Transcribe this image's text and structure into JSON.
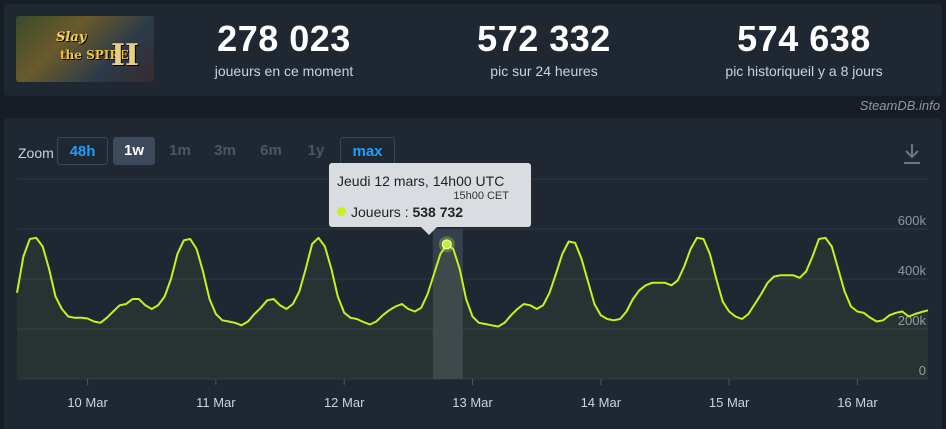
{
  "game": {
    "title_line1": "Slay",
    "title_line2": "the SPIRE",
    "title_numeral": "II"
  },
  "stats": [
    {
      "value": "278 023",
      "label": "joueurs en ce moment"
    },
    {
      "value": "572 332",
      "label": "pic sur 24 heures"
    },
    {
      "value": "574 638",
      "label": "pic historiqueil y a 8 jours"
    }
  ],
  "credit": "SteamDB.info",
  "zoom": {
    "label": "Zoom",
    "options": [
      "48h",
      "1w",
      "1m",
      "3m",
      "6m",
      "1y",
      "max"
    ],
    "selected": "1w"
  },
  "tooltip": {
    "date": "Jeudi 12 mars, 14h00 UTC",
    "cet": "15h00 CET",
    "series_label": "Joueurs : ",
    "value": "538 732"
  },
  "colors": {
    "line": "#c6f21c",
    "accent": "#1a9fff",
    "background": "#1f2733"
  },
  "chart_data": {
    "type": "line",
    "series": [
      {
        "values_note": "hourly player count"
      }
    ],
    "y_ticks": [
      "0",
      "200k",
      "400k",
      "600k"
    ],
    "ylim": [
      0,
      600000
    ],
    "x_ticks": [
      "10 Mar",
      "11 Mar",
      "12 Mar",
      "13 Mar",
      "14 Mar",
      "15 Mar",
      "16 Mar"
    ],
    "points": [
      [
        0.0,
        345000
      ],
      [
        0.6,
        490000
      ],
      [
        1.2,
        560000
      ],
      [
        1.8,
        565000
      ],
      [
        2.4,
        530000
      ],
      [
        3.0,
        440000
      ],
      [
        3.6,
        330000
      ],
      [
        4.2,
        280000
      ],
      [
        4.8,
        250000
      ],
      [
        5.4,
        245000
      ],
      [
        6.0,
        245000
      ],
      [
        6.6,
        242000
      ],
      [
        7.2,
        230000
      ],
      [
        7.8,
        225000
      ],
      [
        8.4,
        245000
      ],
      [
        9.0,
        270000
      ],
      [
        9.6,
        295000
      ],
      [
        10.2,
        300000
      ],
      [
        10.8,
        320000
      ],
      [
        11.4,
        320000
      ],
      [
        12.0,
        295000
      ],
      [
        12.6,
        280000
      ],
      [
        13.2,
        295000
      ],
      [
        13.8,
        330000
      ],
      [
        14.4,
        400000
      ],
      [
        15.0,
        500000
      ],
      [
        15.6,
        555000
      ],
      [
        16.2,
        560000
      ],
      [
        16.8,
        520000
      ],
      [
        17.4,
        430000
      ],
      [
        18.0,
        320000
      ],
      [
        18.6,
        260000
      ],
      [
        19.2,
        235000
      ],
      [
        19.8,
        230000
      ],
      [
        20.4,
        225000
      ],
      [
        21.0,
        215000
      ],
      [
        21.6,
        230000
      ],
      [
        22.2,
        260000
      ],
      [
        22.8,
        285000
      ],
      [
        23.4,
        315000
      ],
      [
        24.0,
        320000
      ],
      [
        24.6,
        295000
      ],
      [
        25.2,
        280000
      ],
      [
        25.8,
        300000
      ],
      [
        26.4,
        350000
      ],
      [
        27.0,
        440000
      ],
      [
        27.6,
        540000
      ],
      [
        28.2,
        565000
      ],
      [
        28.8,
        530000
      ],
      [
        29.4,
        440000
      ],
      [
        30.0,
        330000
      ],
      [
        30.6,
        265000
      ],
      [
        31.2,
        245000
      ],
      [
        31.8,
        240000
      ],
      [
        32.4,
        228000
      ],
      [
        33.0,
        218000
      ],
      [
        33.6,
        230000
      ],
      [
        34.2,
        255000
      ],
      [
        34.8,
        275000
      ],
      [
        35.4,
        290000
      ],
      [
        36.0,
        300000
      ],
      [
        36.6,
        280000
      ],
      [
        37.2,
        270000
      ],
      [
        37.8,
        285000
      ],
      [
        38.4,
        340000
      ],
      [
        39.0,
        420000
      ],
      [
        39.6,
        500000
      ],
      [
        40.2,
        538732
      ],
      [
        40.8,
        520000
      ],
      [
        41.4,
        440000
      ],
      [
        42.0,
        320000
      ],
      [
        42.6,
        250000
      ],
      [
        43.2,
        225000
      ],
      [
        43.8,
        220000
      ],
      [
        44.4,
        215000
      ],
      [
        45.0,
        210000
      ],
      [
        45.6,
        225000
      ],
      [
        46.2,
        255000
      ],
      [
        46.8,
        280000
      ],
      [
        47.4,
        300000
      ],
      [
        48.0,
        295000
      ],
      [
        48.6,
        280000
      ],
      [
        49.2,
        295000
      ],
      [
        49.8,
        345000
      ],
      [
        50.4,
        420000
      ],
      [
        51.0,
        500000
      ],
      [
        51.6,
        550000
      ],
      [
        52.2,
        545000
      ],
      [
        52.8,
        480000
      ],
      [
        53.4,
        390000
      ],
      [
        54.0,
        300000
      ],
      [
        54.6,
        255000
      ],
      [
        55.2,
        240000
      ],
      [
        55.8,
        235000
      ],
      [
        56.4,
        240000
      ],
      [
        57.0,
        270000
      ],
      [
        57.6,
        320000
      ],
      [
        58.2,
        355000
      ],
      [
        58.8,
        375000
      ],
      [
        59.4,
        385000
      ],
      [
        60.0,
        385000
      ],
      [
        60.6,
        385000
      ],
      [
        61.2,
        375000
      ],
      [
        61.8,
        395000
      ],
      [
        62.4,
        450000
      ],
      [
        63.0,
        520000
      ],
      [
        63.6,
        565000
      ],
      [
        64.2,
        560000
      ],
      [
        64.8,
        500000
      ],
      [
        65.4,
        400000
      ],
      [
        66.0,
        310000
      ],
      [
        66.6,
        270000
      ],
      [
        67.2,
        250000
      ],
      [
        67.8,
        240000
      ],
      [
        68.4,
        260000
      ],
      [
        69.0,
        300000
      ],
      [
        69.6,
        340000
      ],
      [
        70.2,
        385000
      ],
      [
        70.8,
        410000
      ],
      [
        71.4,
        415000
      ],
      [
        72.0,
        415000
      ],
      [
        72.6,
        415000
      ],
      [
        73.2,
        405000
      ],
      [
        73.8,
        430000
      ],
      [
        74.4,
        490000
      ],
      [
        75.0,
        560000
      ],
      [
        75.6,
        565000
      ],
      [
        76.2,
        530000
      ],
      [
        76.8,
        440000
      ],
      [
        77.4,
        350000
      ],
      [
        78.0,
        290000
      ],
      [
        78.6,
        270000
      ],
      [
        79.2,
        265000
      ],
      [
        79.8,
        245000
      ],
      [
        80.4,
        230000
      ],
      [
        81.0,
        235000
      ],
      [
        81.6,
        255000
      ],
      [
        82.2,
        265000
      ],
      [
        82.8,
        270000
      ],
      [
        83.4,
        250000
      ],
      [
        84.0,
        260000
      ],
      [
        84.6,
        268000
      ],
      [
        85.2,
        275000
      ]
    ],
    "x_domain": [
      0,
      85.2
    ],
    "x_tick_positions": [
      6.6,
      18.6,
      30.6,
      42.6,
      54.6,
      66.6,
      78.6
    ],
    "highlight_x": 40.2
  }
}
